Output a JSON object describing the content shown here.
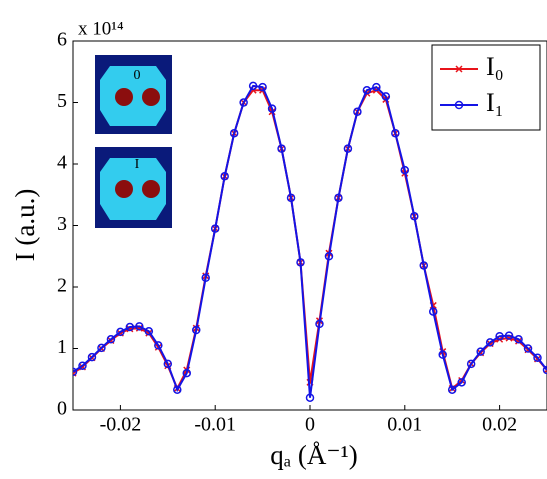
{
  "chart_data": {
    "type": "line",
    "xlabel": "qₐ (Å⁻¹)",
    "ylabel": "I (a.u.)",
    "y_multiplier": "x 10¹⁴",
    "inset_labels": [
      "0",
      "I"
    ],
    "x": [
      -0.025,
      -0.024,
      -0.023,
      -0.022,
      -0.021,
      -0.02,
      -0.019,
      -0.018,
      -0.017,
      -0.016,
      -0.015,
      -0.014,
      -0.013,
      -0.012,
      -0.011,
      -0.01,
      -0.009,
      -0.008,
      -0.007,
      -0.006,
      -0.005,
      -0.004,
      -0.003,
      -0.002,
      -0.001,
      0,
      0.001,
      0.002,
      0.003,
      0.004,
      0.005,
      0.006,
      0.007,
      0.008,
      0.009,
      0.01,
      0.011,
      0.012,
      0.013,
      0.014,
      0.015,
      0.016,
      0.017,
      0.018,
      0.019,
      0.02,
      0.021,
      0.022,
      0.023,
      0.024,
      0.025
    ],
    "series": [
      {
        "name": "I₀",
        "color": "#e8141b",
        "marker": "x",
        "values": [
          0.6,
          0.7,
          0.85,
          1.0,
          1.13,
          1.25,
          1.32,
          1.33,
          1.25,
          1.02,
          0.72,
          0.35,
          0.65,
          1.33,
          2.18,
          2.95,
          3.8,
          4.5,
          5.0,
          5.2,
          5.2,
          4.85,
          4.25,
          3.45,
          2.4,
          0.45,
          1.45,
          2.55,
          3.45,
          4.25,
          4.85,
          5.15,
          5.2,
          5.05,
          4.5,
          3.85,
          3.15,
          2.35,
          1.7,
          0.95,
          0.35,
          0.48,
          0.75,
          0.93,
          1.08,
          1.15,
          1.17,
          1.12,
          0.98,
          0.83,
          0.65
        ]
      },
      {
        "name": "I₁",
        "color": "#1414e6",
        "marker": "o",
        "values": [
          0.62,
          0.72,
          0.86,
          1.01,
          1.15,
          1.27,
          1.35,
          1.36,
          1.28,
          1.05,
          0.75,
          0.33,
          0.6,
          1.3,
          2.15,
          2.95,
          3.8,
          4.5,
          5.0,
          5.27,
          5.25,
          4.9,
          4.25,
          3.45,
          2.4,
          0.2,
          1.4,
          2.5,
          3.45,
          4.25,
          4.85,
          5.2,
          5.25,
          5.1,
          4.5,
          3.9,
          3.15,
          2.35,
          1.6,
          0.9,
          0.33,
          0.45,
          0.75,
          0.95,
          1.1,
          1.2,
          1.21,
          1.15,
          1.0,
          0.85,
          0.65
        ]
      }
    ],
    "xlim": [
      -0.025,
      0.025
    ],
    "ylim": [
      0,
      6
    ],
    "xticks": [
      -0.02,
      -0.01,
      0,
      0.01,
      0.02
    ],
    "yticks": [
      0,
      1,
      2,
      3,
      4,
      5,
      6
    ],
    "legend": "upper right"
  }
}
